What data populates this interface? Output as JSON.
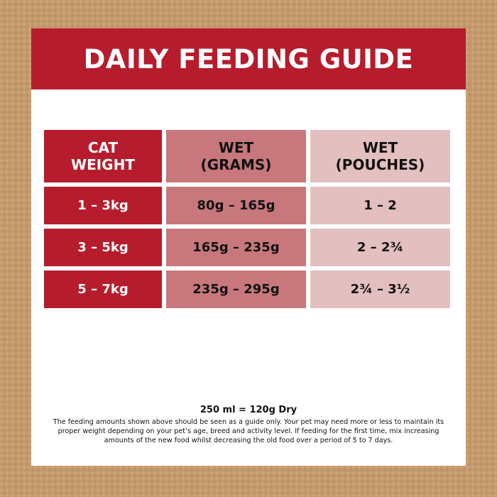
{
  "header": {
    "title": "DAILY FEEDING GUIDE"
  },
  "table": {
    "columns": [
      {
        "line1": "CAT",
        "line2": "WEIGHT"
      },
      {
        "line1": "WET",
        "line2": "(GRAMS)"
      },
      {
        "line1": "WET",
        "line2": "(POUCHES)"
      }
    ],
    "rows": [
      {
        "weight": "1 – 3kg",
        "grams": "80g – 165g",
        "pouches": "1 – 2"
      },
      {
        "weight": "3 – 5kg",
        "grams": "165g – 235g",
        "pouches": "2 – 2¾"
      },
      {
        "weight": "5 – 7kg",
        "grams": "235g – 295g",
        "pouches": "2¾ – 3½"
      }
    ]
  },
  "footer": {
    "conversion": "250 ml = 120g Dry",
    "note": "The feeding amounts shown above should be seen as a guide only. Your pet may need more or less to maintain its proper weight depending on your pet’s age, breed and activity level. If feeding for the first time, mix increasing amounts of the new food whilst decreasing the old food over a period of 5 to 7 days."
  },
  "colors": {
    "brand_red": "#b71c2c",
    "mid_pink": "#c8787c",
    "light_pink": "#e3bfc0",
    "background": "#c49a6c"
  }
}
